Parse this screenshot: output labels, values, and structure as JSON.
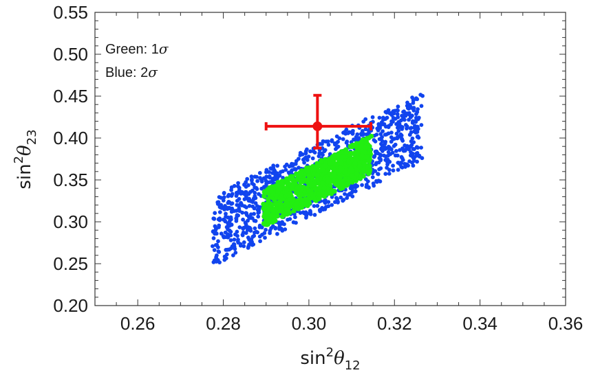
{
  "chart_data": {
    "type": "scatter",
    "xlabel": {
      "base": "sin",
      "sup": "2",
      "greek": "θ",
      "sub": "12"
    },
    "ylabel": {
      "base": "sin",
      "sup": "2",
      "greek": "θ",
      "sub": "23"
    },
    "xlim": [
      0.25,
      0.36
    ],
    "ylim": [
      0.2,
      0.55
    ],
    "x_ticks": [
      "0.26",
      "0.28",
      "0.30",
      "0.32",
      "0.34",
      "0.36"
    ],
    "x_tick_values": [
      0.26,
      0.28,
      0.3,
      0.32,
      0.34,
      0.36
    ],
    "y_ticks": [
      "0.20",
      "0.25",
      "0.30",
      "0.35",
      "0.40",
      "0.45",
      "0.50",
      "0.55"
    ],
    "y_tick_values": [
      0.2,
      0.25,
      0.3,
      0.35,
      0.4,
      0.45,
      0.5,
      0.55
    ],
    "grid": false,
    "legend": {
      "position": "top-left",
      "entries": [
        {
          "label": "Green: 1",
          "sigma": "σ",
          "color": "#22ee11"
        },
        {
          "label": "Blue: 2",
          "sigma": "σ",
          "color": "#1144ee"
        }
      ]
    },
    "series": [
      {
        "color": "#1144ee",
        "region": "parallelogram",
        "corners": [
          [
            0.2775,
            0.247
          ],
          [
            0.2775,
            0.332
          ],
          [
            0.3265,
            0.455
          ],
          [
            0.3265,
            0.372
          ]
        ],
        "point_count": 1100
      },
      {
        "color": "#22ee11",
        "region": "parallelogram",
        "corners": [
          [
            0.2895,
            0.295
          ],
          [
            0.2895,
            0.338
          ],
          [
            0.3145,
            0.403
          ],
          [
            0.3145,
            0.357
          ]
        ],
        "point_count": 900
      }
    ],
    "best_fit": {
      "color": "#ee1111",
      "x": 0.302,
      "y": 0.414,
      "x_err": [
        0.29,
        0.3145
      ],
      "y_err": [
        0.388,
        0.451
      ]
    }
  }
}
